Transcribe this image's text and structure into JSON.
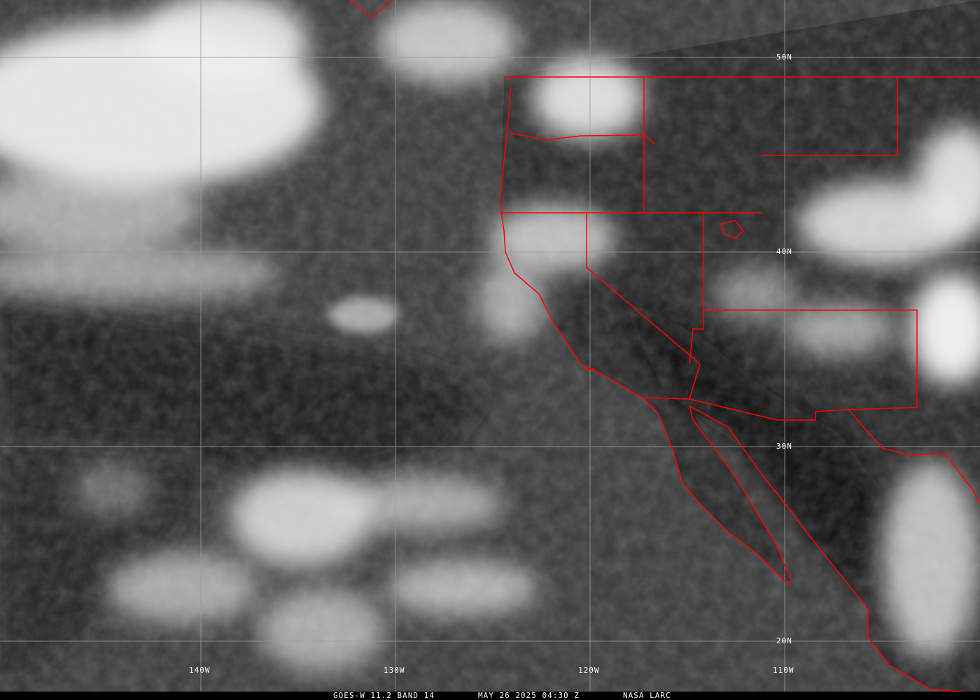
{
  "image": {
    "caption": {
      "satellite": "GOES-W 11.2 BAND 14",
      "datetime": "MAY 26 2025 04:30 Z",
      "source": "NASA LARC"
    },
    "latitude_labels": [
      "50N",
      "40N",
      "30N",
      "20N"
    ],
    "longitude_labels": [
      "140W",
      "130W",
      "120W",
      "110W"
    ],
    "colors": {
      "boundaries": "#ff0000",
      "gridlines": "#9a9a9a",
      "clouds": "#f2f2f2",
      "ocean": "#3c3c3c",
      "land": "#1e1e1e"
    }
  }
}
